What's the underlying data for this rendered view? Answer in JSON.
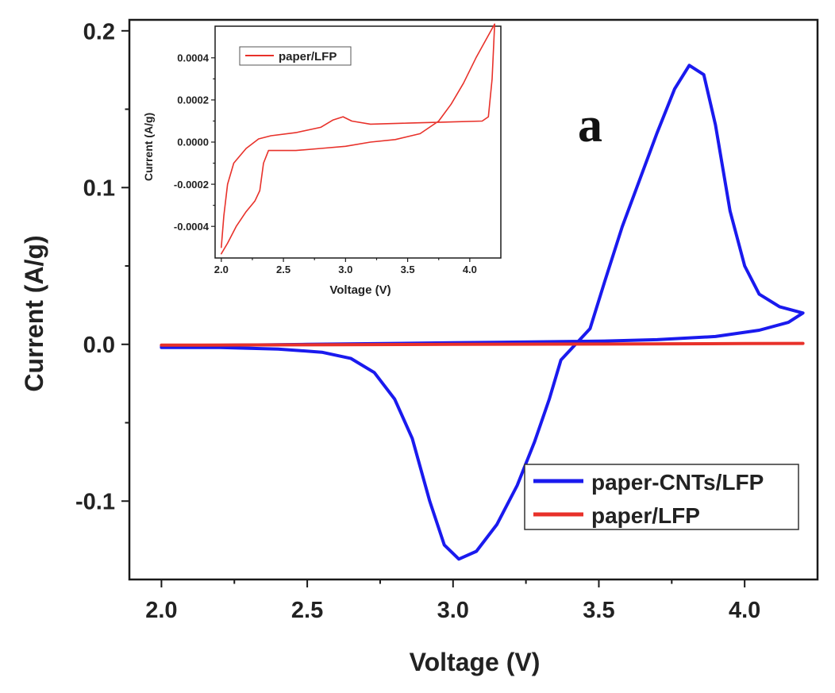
{
  "chart_data": [
    {
      "type": "line",
      "panel_label": "a",
      "xlabel": "Voltage (V)",
      "ylabel": "Current (A/g)",
      "xlim": [
        1.89,
        4.25
      ],
      "ylim": [
        -0.15,
        0.207
      ],
      "x_ticks": [
        2.0,
        2.5,
        3.0,
        3.5,
        4.0
      ],
      "x_tick_labels": [
        "2.0",
        "2.5",
        "3.0",
        "3.5",
        "4.0"
      ],
      "y_ticks": [
        -0.1,
        0.0,
        0.1,
        0.2
      ],
      "y_tick_labels": [
        "-0.1",
        "0.0",
        "0.1",
        "0.2"
      ],
      "grid": false,
      "legend_position": "bottom-right",
      "series": [
        {
          "name": "paper-CNTs/LFP",
          "color": "#1a1aee",
          "points": [
            [
              2.0,
              -0.002
            ],
            [
              2.2,
              -0.002
            ],
            [
              2.4,
              -0.003
            ],
            [
              2.55,
              -0.005
            ],
            [
              2.65,
              -0.009
            ],
            [
              2.73,
              -0.018
            ],
            [
              2.8,
              -0.035
            ],
            [
              2.86,
              -0.06
            ],
            [
              2.92,
              -0.1
            ],
            [
              2.97,
              -0.128
            ],
            [
              3.02,
              -0.137
            ],
            [
              3.08,
              -0.132
            ],
            [
              3.15,
              -0.115
            ],
            [
              3.22,
              -0.09
            ],
            [
              3.28,
              -0.062
            ],
            [
              3.33,
              -0.035
            ],
            [
              3.37,
              -0.01
            ],
            [
              3.42,
              0.0
            ],
            [
              3.47,
              0.01
            ],
            [
              3.52,
              0.04
            ],
            [
              3.58,
              0.075
            ],
            [
              3.64,
              0.105
            ],
            [
              3.7,
              0.135
            ],
            [
              3.76,
              0.163
            ],
            [
              3.81,
              0.178
            ],
            [
              3.86,
              0.172
            ],
            [
              3.9,
              0.14
            ],
            [
              3.95,
              0.085
            ],
            [
              4.0,
              0.05
            ],
            [
              4.05,
              0.032
            ],
            [
              4.12,
              0.024
            ],
            [
              4.2,
              0.02
            ],
            [
              4.15,
              0.014
            ],
            [
              4.05,
              0.009
            ],
            [
              3.9,
              0.005
            ],
            [
              3.7,
              0.003
            ],
            [
              3.5,
              0.002
            ],
            [
              3.0,
              0.001
            ],
            [
              2.5,
              0.0
            ],
            [
              2.0,
              -0.001
            ]
          ]
        },
        {
          "name": "paper/LFP",
          "color": "#e8312a",
          "points": [
            [
              2.0,
              -0.0005
            ],
            [
              2.5,
              -0.0003
            ],
            [
              3.0,
              0.0
            ],
            [
              3.5,
              0.0002
            ],
            [
              4.0,
              0.0005
            ],
            [
              4.2,
              0.0006
            ]
          ]
        }
      ]
    },
    {
      "type": "line",
      "subtitle": "inset",
      "xlabel": "Voltage (V)",
      "ylabel": "Current (A/g)",
      "xlim": [
        1.95,
        4.25
      ],
      "ylim": [
        -0.00055,
        0.00055
      ],
      "x_ticks": [
        2.0,
        2.5,
        3.0,
        3.5,
        4.0
      ],
      "x_tick_labels": [
        "2.0",
        "2.5",
        "3.0",
        "3.5",
        "4.0"
      ],
      "y_ticks": [
        -0.0004,
        -0.0002,
        0.0,
        0.0002,
        0.0004
      ],
      "y_tick_labels": [
        "-0.0004",
        "-0.0002",
        "0.0000",
        "0.0002",
        "0.0004"
      ],
      "grid": false,
      "legend_position": "top-left",
      "series": [
        {
          "name": "paper/LFP",
          "color": "#e8312a",
          "points": [
            [
              2.0,
              -0.00053
            ],
            [
              2.05,
              -0.00048
            ],
            [
              2.12,
              -0.0004
            ],
            [
              2.2,
              -0.00033
            ],
            [
              2.27,
              -0.00028
            ],
            [
              2.31,
              -0.00023
            ],
            [
              2.34,
              -0.0001
            ],
            [
              2.38,
              -4e-05
            ],
            [
              2.45,
              -4e-05
            ],
            [
              2.6,
              -4e-05
            ],
            [
              2.8,
              -3e-05
            ],
            [
              3.0,
              -2e-05
            ],
            [
              3.2,
              0.0
            ],
            [
              3.4,
              1.2e-05
            ],
            [
              3.6,
              4e-05
            ],
            [
              3.75,
              0.0001
            ],
            [
              3.85,
              0.00018
            ],
            [
              3.95,
              0.00028
            ],
            [
              4.05,
              0.0004
            ],
            [
              4.2,
              0.00056
            ],
            [
              4.18,
              0.0003
            ],
            [
              4.15,
              0.00012
            ],
            [
              4.1,
              0.0001
            ],
            [
              3.8,
              9.5e-05
            ],
            [
              3.5,
              9e-05
            ],
            [
              3.2,
              8.5e-05
            ],
            [
              3.05,
              0.0001
            ],
            [
              2.98,
              0.00012
            ],
            [
              2.9,
              0.000105
            ],
            [
              2.8,
              7e-05
            ],
            [
              2.6,
              4.5e-05
            ],
            [
              2.4,
              3e-05
            ],
            [
              2.3,
              1.5e-05
            ],
            [
              2.2,
              -3e-05
            ],
            [
              2.1,
              -0.0001
            ],
            [
              2.05,
              -0.0002
            ],
            [
              2.02,
              -0.00035
            ],
            [
              2.0,
              -0.0005
            ]
          ]
        }
      ]
    }
  ]
}
